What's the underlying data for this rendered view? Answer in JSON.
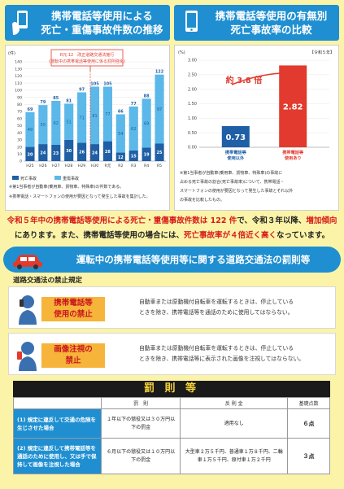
{
  "header_left": {
    "line1": "携帯電話等使用による",
    "line2": "死亡・重傷事故件数の推移"
  },
  "header_right": {
    "line1": "携帯電話等使用の有無別",
    "line2": "死亡事故率の比較"
  },
  "left_chart_unit": "(件)",
  "left_chart_annotation": {
    "line1": "R元.12　改正道路交通法施行",
    "line2": "(運転中の携帯電話等使用に係る罰則強化)"
  },
  "left_legend": {
    "fatal": "死亡事故",
    "injury": "重傷事故"
  },
  "left_notes": [
    "※第1当事者が自動車(乗用車、貨物車、特殊車)の件数である。",
    "※携帯電話・スマートフォンの使用が要因となって発生した事故を集計した。"
  ],
  "right_chart_tag": "【令和５年】",
  "right_chart_multiplier": "約 3.8 倍",
  "right_notes": [
    "※第1当事者が自動車(乗用車、貨物車、特殊車)の事故に",
    "占める死亡事故の割合(死亡事故率)について、携帯電話・",
    "スマートフォンの使用が要因となって発生した事故とそれ以外",
    "の事故を比較したもの。"
  ],
  "summary": {
    "s1": "令和５年中の携帯電話等使用による死亡・重傷事故件数は",
    "s2": " 122 件",
    "s3": "で、令和３年以降、",
    "s4": "増加傾向",
    "s5": "にあります。また、携帯電話等使用の場合には、",
    "s6": "死亡事故率が４倍近く高く",
    "s7": "なっています。"
  },
  "banner_title": "運転中の携帯電話等使用等に関する道路交通法の罰則等",
  "law_label": "道路交通法の禁止規定",
  "rules": [
    {
      "tag1": "携帯電話等",
      "tag2": "使用の禁止",
      "d1": "自動車または原動機付自転車を運転するときは、停止している",
      "d2": "ときを除き、携帯電話等を通話のために使用してはならない。"
    },
    {
      "tag1": "画像注視の",
      "tag2": "禁止",
      "d1": "自動車または原動機付自転車を運転するときは、停止している",
      "d2": "ときを除き、携帯電話等に表示された画像を注視してはならない。"
    }
  ],
  "penalty": {
    "title": "罰 則 等",
    "headers": [
      "罰　則",
      "反 則 金",
      "基礎点数"
    ],
    "rows": [
      {
        "case": "(1) 規定に違反して交通の危険を生じさせた場合",
        "penalty": "１年以下の懲役又は３０万円以下の罰金",
        "fine": "適用なし",
        "points": "６点"
      },
      {
        "case": "(2) 規定に違反して携帯電話等を通話のために使用し、又は手で保持して画像を注視した場合",
        "penalty": "６月以下の懲役又は１０万円以下の罰金",
        "fine": "大型車２万５千円、普通車１万８千円、二輪車１万５千円、原付車１万２千円",
        "points": "３点"
      }
    ]
  },
  "colors": {
    "blue": "#1f8fd1",
    "navy": "#1e5fa6",
    "light": "#5cb8e8",
    "red": "#e23a2e",
    "orange": "#f6b43a"
  },
  "chart_data": [
    {
      "type": "bar",
      "title": "携帯電話等使用による死亡・重傷事故件数の推移",
      "categories": [
        "H25",
        "H26",
        "H27",
        "H28",
        "H29",
        "H30",
        "R元",
        "R2",
        "R3",
        "R4",
        "R5"
      ],
      "series": [
        {
          "name": "死亡事故",
          "values": [
            20,
            24,
            23,
            30,
            26,
            24,
            28,
            12,
            15,
            19,
            25
          ]
        },
        {
          "name": "重傷事故",
          "values": [
            49,
            55,
            62,
            51,
            71,
            81,
            77,
            54,
            62,
            69,
            97
          ]
        }
      ],
      "totals": [
        69,
        79,
        85,
        81,
        97,
        105,
        105,
        66,
        77,
        88,
        122
      ],
      "ylim": [
        0,
        140
      ],
      "yticks": [
        0,
        10,
        20,
        30,
        40,
        50,
        60,
        70,
        80,
        90,
        100,
        110,
        120,
        130,
        140
      ],
      "ylabel": "(件)"
    },
    {
      "type": "bar",
      "title": "携帯電話等使用の有無別死亡事故率の比較",
      "categories": [
        "携帯電話等使用以外",
        "携帯電話等使用あり"
      ],
      "category_lines": [
        [
          "携帯電話等",
          "使用以外"
        ],
        [
          "携帯電話等",
          "使用あり"
        ]
      ],
      "values": [
        0.73,
        2.82
      ],
      "ylim": [
        0,
        3.0
      ],
      "yticks": [
        "0.00",
        "0.50",
        "1.00",
        "1.50",
        "2.00",
        "2.50",
        "3.00"
      ],
      "ylabel": "(%)"
    }
  ]
}
